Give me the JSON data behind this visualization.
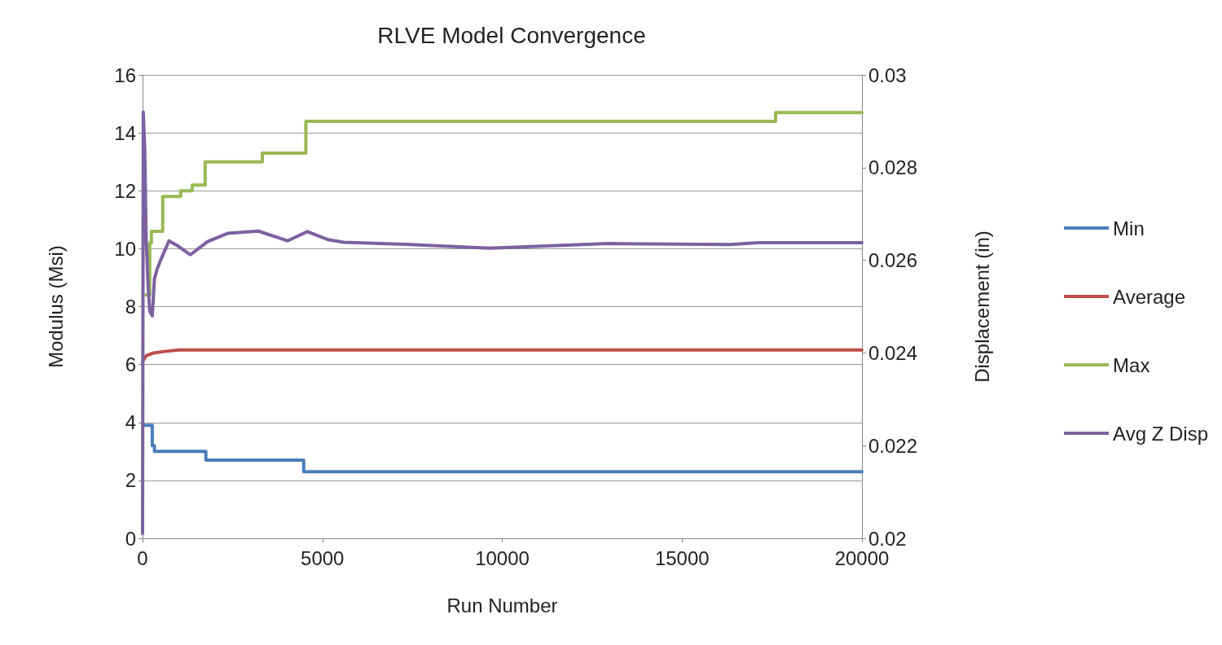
{
  "chart_data": {
    "type": "line",
    "title": "RLVE Model Convergence",
    "xlabel": "Run Number",
    "ylabel": "Modulus (Msi)",
    "y2label": "Displacement (in)",
    "xlim": [
      0,
      20000
    ],
    "xticks": [
      0,
      5000,
      10000,
      15000,
      20000
    ],
    "ylim": [
      0,
      16
    ],
    "yticks": [
      0,
      2,
      4,
      6,
      8,
      10,
      12,
      14,
      16
    ],
    "y2lim": [
      0.02,
      0.03
    ],
    "y2ticks": [
      0.02,
      0.022,
      0.024,
      0.026,
      0.028,
      0.03
    ],
    "grid": "y",
    "legend": "right",
    "marker": "none",
    "line_style": "solid",
    "series": [
      {
        "name": "Min",
        "type": "step",
        "color": "#4a7ebb",
        "x": [
          0,
          270,
          330,
          1760,
          4480,
          20000
        ],
        "values": [
          3.9,
          3.2,
          3.0,
          2.7,
          2.3,
          2.3
        ]
      },
      {
        "name": "Average",
        "type": "line",
        "color": "#be4b48",
        "x": [
          0,
          100,
          300,
          600,
          1000,
          5000,
          10000,
          15000,
          20000
        ],
        "values": [
          6.1,
          6.3,
          6.4,
          6.45,
          6.5,
          6.5,
          6.5,
          6.5,
          6.5
        ]
      },
      {
        "name": "Max",
        "type": "step",
        "color": "#98b954",
        "x": [
          100,
          200,
          245,
          560,
          1060,
          1380,
          1740,
          3330,
          4540,
          17600,
          20000
        ],
        "values": [
          8.4,
          10.2,
          10.6,
          11.8,
          12.0,
          12.2,
          13.0,
          13.3,
          14.4,
          14.7,
          14.7
        ]
      },
      {
        "name": "Avg Z Disp",
        "type": "line",
        "axis": "y2",
        "color": "#7d60a0",
        "x": [
          0,
          20,
          60,
          100,
          150,
          200,
          270,
          330,
          400,
          500,
          734,
          1000,
          1330,
          1800,
          2360,
          3220,
          4030,
          4580,
          5180,
          5600,
          7470,
          9650,
          12950,
          16330,
          17130,
          20000
        ],
        "values": [
          0.0201,
          0.0292,
          0.0284,
          0.0265,
          0.0255,
          0.0249,
          0.0248,
          0.0256,
          0.0258,
          0.026,
          0.02642,
          0.0263,
          0.02612,
          0.0264,
          0.02658,
          0.02663,
          0.02642,
          0.02662,
          0.02644,
          0.02639,
          0.02634,
          0.02626,
          0.02636,
          0.02634,
          0.02638,
          0.02638
        ]
      }
    ]
  }
}
